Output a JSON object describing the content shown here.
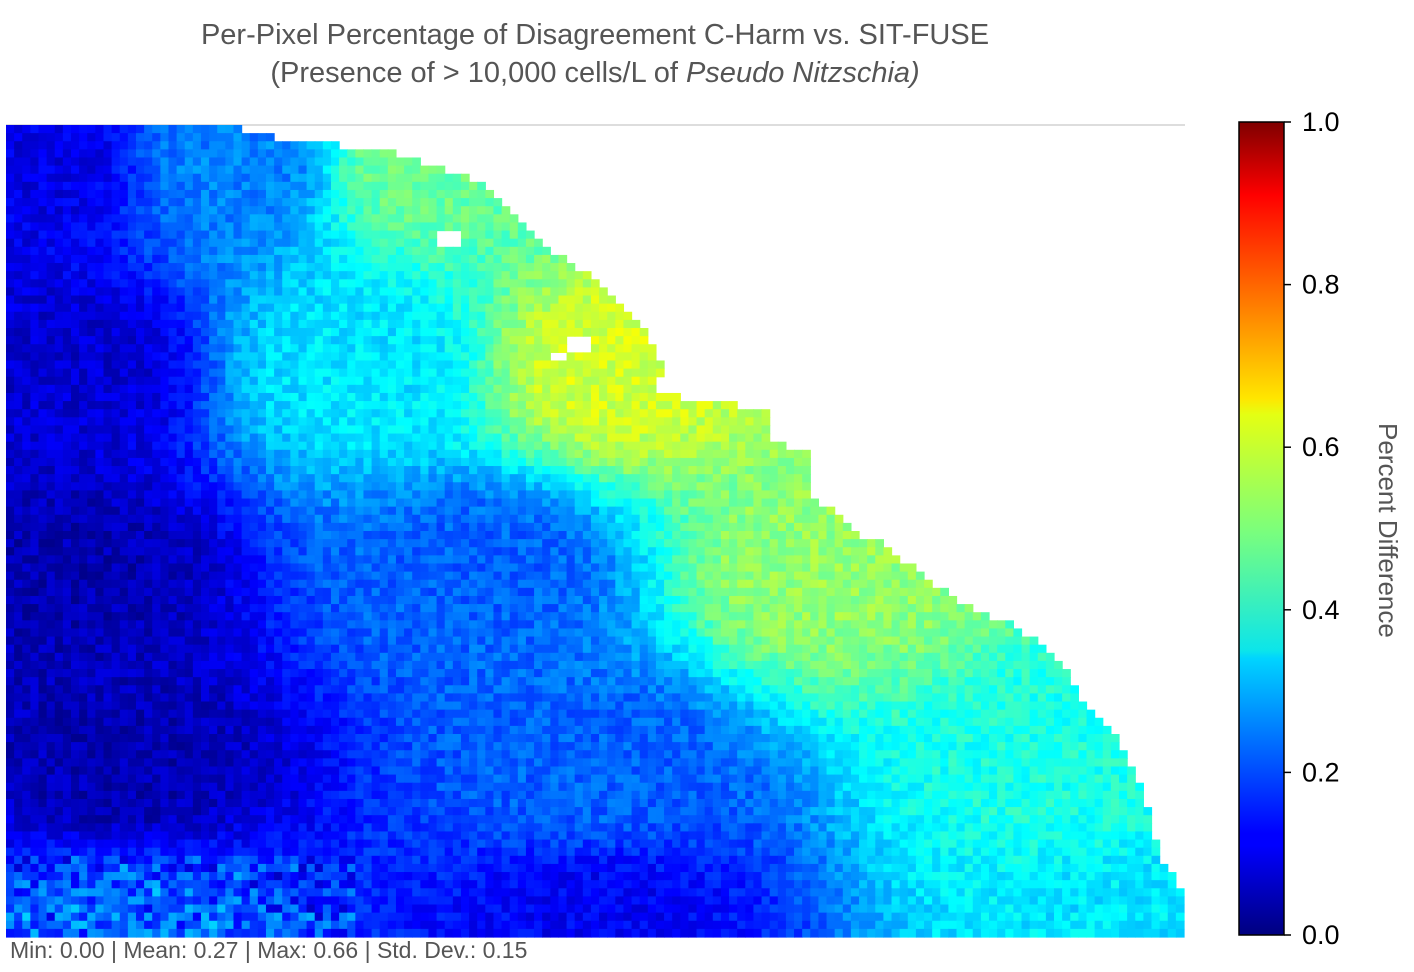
{
  "title": {
    "line1": "Per-Pixel Percentage of Disagreement C-Harm vs. SIT-FUSE",
    "line2_pre": "(Presence of > 10,000 cells/L of ",
    "line2_italic": "Pseudo Nitzschia)"
  },
  "stats": {
    "text": "Min: 0.00 | Mean: 0.27 | Max: 0.66 | Std. Dev.: 0.15"
  },
  "chart_data": {
    "type": "heatmap",
    "title": "Per-Pixel Percentage of Disagreement C-Harm vs. SIT-FUSE (Presence of > 10,000 cells/L of Pseudo Nitzschia)",
    "colormap": "jet",
    "vmin": 0.0,
    "vmax": 1.0,
    "colorbar": {
      "label": "Percent Difference",
      "ticks": [
        0.0,
        0.2,
        0.4,
        0.6,
        0.8,
        1.0
      ],
      "tick_labels": [
        "0.0",
        "0.2",
        "0.4",
        "0.6",
        "0.8",
        "1.0"
      ]
    },
    "statistics": {
      "min": 0.0,
      "mean": 0.27,
      "max": 0.66,
      "std_dev": 0.15
    },
    "grid": false,
    "background_mask_color": "#ffffff",
    "grid_shape": {
      "rows": 100,
      "cols": 145
    },
    "valid_region_right_edge": [
      [
        0.0,
        0.19
      ],
      [
        0.02,
        0.24
      ],
      [
        0.03,
        0.32
      ],
      [
        0.05,
        0.36
      ],
      [
        0.07,
        0.4
      ],
      [
        0.09,
        0.42
      ],
      [
        0.12,
        0.44
      ],
      [
        0.15,
        0.46
      ],
      [
        0.2,
        0.51
      ],
      [
        0.25,
        0.54
      ],
      [
        0.3,
        0.56
      ],
      [
        0.33,
        0.55
      ],
      [
        0.34,
        0.59
      ],
      [
        0.35,
        0.65
      ],
      [
        0.39,
        0.65
      ],
      [
        0.4,
        0.68
      ],
      [
        0.45,
        0.68
      ],
      [
        0.5,
        0.72
      ],
      [
        0.52,
        0.75
      ],
      [
        0.57,
        0.79
      ],
      [
        0.6,
        0.83
      ],
      [
        0.62,
        0.86
      ],
      [
        0.65,
        0.89
      ],
      [
        0.7,
        0.91
      ],
      [
        0.75,
        0.94
      ],
      [
        0.8,
        0.96
      ],
      [
        0.85,
        0.97
      ],
      [
        0.9,
        0.98
      ],
      [
        0.95,
        1.0
      ],
      [
        1.0,
        1.0
      ]
    ],
    "mask_holes": [
      {
        "row_frac": 0.13,
        "col_frac": 0.365,
        "size_cells": 2
      },
      {
        "row_frac": 0.26,
        "col_frac": 0.475,
        "size_cells": 2
      },
      {
        "row_frac": 0.28,
        "col_frac": 0.465,
        "size_cells": 1
      }
    ],
    "value_field_description_points": [
      {
        "row_frac": 0.05,
        "col_frac": 0.02,
        "value": 0.1
      },
      {
        "row_frac": 0.05,
        "col_frac": 0.2,
        "value": 0.25
      },
      {
        "row_frac": 0.05,
        "col_frac": 0.35,
        "value": 0.48
      },
      {
        "row_frac": 0.3,
        "col_frac": 0.05,
        "value": 0.08
      },
      {
        "row_frac": 0.3,
        "col_frac": 0.3,
        "value": 0.35
      },
      {
        "row_frac": 0.3,
        "col_frac": 0.52,
        "value": 0.58
      },
      {
        "row_frac": 0.55,
        "col_frac": 0.05,
        "value": 0.05
      },
      {
        "row_frac": 0.55,
        "col_frac": 0.4,
        "value": 0.22
      },
      {
        "row_frac": 0.55,
        "col_frac": 0.7,
        "value": 0.52
      },
      {
        "row_frac": 0.8,
        "col_frac": 0.1,
        "value": 0.05
      },
      {
        "row_frac": 0.8,
        "col_frac": 0.5,
        "value": 0.22
      },
      {
        "row_frac": 0.8,
        "col_frac": 0.9,
        "value": 0.4
      },
      {
        "row_frac": 0.98,
        "col_frac": 0.1,
        "value": 0.22
      },
      {
        "row_frac": 0.98,
        "col_frac": 0.5,
        "value": 0.12
      },
      {
        "row_frac": 0.98,
        "col_frac": 0.95,
        "value": 0.35
      }
    ]
  }
}
